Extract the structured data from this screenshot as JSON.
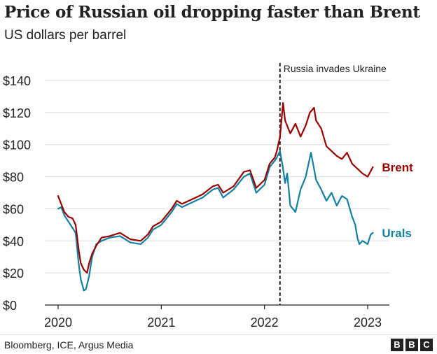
{
  "header": {
    "title": "Price of Russian oil dropping faster than Brent",
    "subtitle": "US dollars per barrel"
  },
  "footer": {
    "source": "Bloomberg, ICE, Argus Media",
    "logo": [
      "B",
      "B",
      "C"
    ]
  },
  "chart_data": {
    "type": "line",
    "xlim": [
      2020.0,
      2023.15
    ],
    "ylim": [
      0,
      140
    ],
    "x_ticks": [
      2020,
      2021,
      2022,
      2023
    ],
    "x_tick_labels": [
      "2020",
      "2021",
      "2022",
      "2023"
    ],
    "y_ticks": [
      0,
      20,
      40,
      60,
      80,
      100,
      120,
      140
    ],
    "y_tick_labels": [
      "$0",
      "$20",
      "$40",
      "$60",
      "$80",
      "$100",
      "$120",
      "$140"
    ],
    "grid": true,
    "annotation": {
      "label": "Russia invades Ukraine",
      "x": 2022.15
    },
    "series": [
      {
        "name": "Brent",
        "color": "#990000",
        "x": [
          2020.0,
          2020.03,
          2020.06,
          2020.1,
          2020.14,
          2020.17,
          2020.2,
          2020.22,
          2020.25,
          2020.28,
          2020.3,
          2020.33,
          2020.37,
          2020.42,
          2020.5,
          2020.6,
          2020.7,
          2020.8,
          2020.87,
          2020.92,
          2021.0,
          2021.1,
          2021.15,
          2021.2,
          2021.3,
          2021.4,
          2021.5,
          2021.55,
          2021.6,
          2021.7,
          2021.8,
          2021.86,
          2021.92,
          2022.0,
          2022.05,
          2022.1,
          2022.12,
          2022.15,
          2022.18,
          2022.2,
          2022.25,
          2022.3,
          2022.35,
          2022.4,
          2022.44,
          2022.48,
          2022.5,
          2022.55,
          2022.6,
          2022.65,
          2022.7,
          2022.75,
          2022.8,
          2022.85,
          2022.9,
          2022.95,
          2023.0,
          2023.05
        ],
        "values": [
          68,
          63,
          58,
          55,
          54,
          50,
          34,
          26,
          22,
          20,
          26,
          32,
          37,
          42,
          43,
          45,
          41,
          40,
          44,
          49,
          52,
          60,
          65,
          63,
          66,
          69,
          74,
          75,
          70,
          74,
          83,
          84,
          73,
          78,
          88,
          92,
          96,
          105,
          126,
          115,
          107,
          113,
          105,
          112,
          120,
          123,
          115,
          110,
          99,
          96,
          93,
          91,
          95,
          88,
          85,
          82,
          80,
          86
        ]
      },
      {
        "name": "Urals",
        "color": "#1380a1",
        "x": [
          2020.0,
          2020.03,
          2020.06,
          2020.1,
          2020.14,
          2020.17,
          2020.2,
          2020.22,
          2020.25,
          2020.27,
          2020.3,
          2020.33,
          2020.37,
          2020.42,
          2020.5,
          2020.6,
          2020.7,
          2020.8,
          2020.87,
          2020.92,
          2021.0,
          2021.1,
          2021.15,
          2021.2,
          2021.3,
          2021.4,
          2021.5,
          2021.55,
          2021.6,
          2021.7,
          2021.8,
          2021.86,
          2021.92,
          2022.0,
          2022.05,
          2022.1,
          2022.12,
          2022.15,
          2022.18,
          2022.2,
          2022.22,
          2022.25,
          2022.3,
          2022.35,
          2022.4,
          2022.45,
          2022.48,
          2022.5,
          2022.55,
          2022.6,
          2022.65,
          2022.7,
          2022.75,
          2022.8,
          2022.85,
          2022.88,
          2022.9,
          2022.92,
          2022.95,
          2023.0,
          2023.03,
          2023.05
        ],
        "values": [
          60,
          61,
          56,
          52,
          48,
          45,
          25,
          16,
          9,
          10,
          18,
          30,
          38,
          40,
          42,
          43,
          39,
          38,
          42,
          47,
          50,
          58,
          63,
          61,
          64,
          67,
          72,
          73,
          67,
          72,
          80,
          82,
          70,
          75,
          86,
          90,
          92,
          96,
          85,
          76,
          82,
          62,
          58,
          72,
          80,
          95,
          85,
          78,
          72,
          65,
          70,
          62,
          68,
          66,
          55,
          50,
          42,
          38,
          40,
          38,
          44,
          45
        ]
      }
    ]
  }
}
